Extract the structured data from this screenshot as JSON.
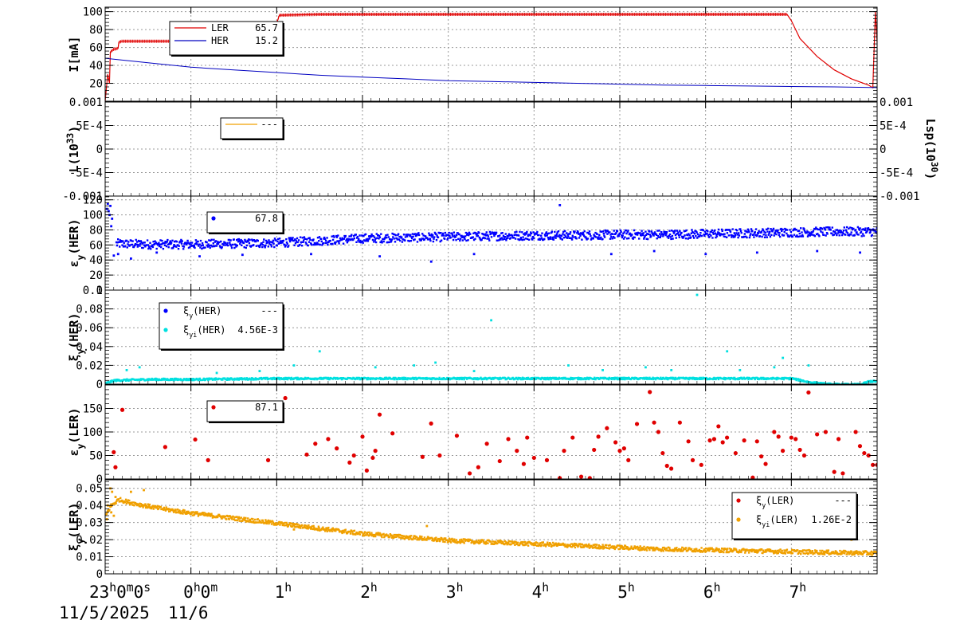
{
  "chart_data": {
    "type": "line",
    "x_axis": {
      "ticks": [
        {
          "t": 0.0,
          "main": "23",
          "sup": "h",
          "rest": "0",
          "sup2": "m",
          "rest2": "0",
          "sup3": "s"
        },
        {
          "t": 1.0,
          "main": "0",
          "sup": "h",
          "rest": "0",
          "sup2": "m"
        },
        {
          "t": 2.0,
          "main": "1",
          "sup": "h"
        },
        {
          "t": 3.0,
          "main": "2",
          "sup": "h"
        },
        {
          "t": 4.0,
          "main": "3",
          "sup": "h"
        },
        {
          "t": 5.0,
          "main": "4",
          "sup": "h"
        },
        {
          "t": 6.0,
          "main": "5",
          "sup": "h"
        },
        {
          "t": 7.0,
          "main": "6",
          "sup": "h"
        },
        {
          "t": 8.0,
          "main": "7",
          "sup": "h"
        }
      ],
      "dates": [
        "11/5/2025",
        "11/6"
      ],
      "range": [
        0.0,
        9.0
      ]
    },
    "panels": [
      {
        "id": "current",
        "ylabel": "I[mA]",
        "ylim": [
          0,
          105
        ],
        "yticks": [
          {
            "v": 20,
            "l": "20"
          },
          {
            "v": 40,
            "l": "40"
          },
          {
            "v": 60,
            "l": "60"
          },
          {
            "v": 80,
            "l": "80"
          },
          {
            "v": 100,
            "l": "100"
          }
        ],
        "legend": [
          {
            "name": "LER",
            "value": "65.7",
            "color": "#e00000",
            "marker": "line"
          },
          {
            "name": "HER",
            "value": "15.2",
            "color": "#0000c0",
            "marker": "line"
          }
        ],
        "series": [
          {
            "name": "LER",
            "color": "#e00000",
            "style": "line",
            "x": [
              0.0,
              0.03,
              0.05,
              0.06,
              0.1,
              0.15,
              0.16,
              0.2,
              0.3,
              0.5,
              0.8,
              1.0,
              1.03,
              1.2,
              1.4,
              1.45,
              1.5,
              1.6,
              1.9,
              2.0,
              2.03,
              2.5,
              3.0,
              4.0,
              5.0,
              6.0,
              7.0,
              7.5,
              7.95,
              8.0,
              8.1,
              8.3,
              8.5,
              8.7,
              8.9,
              8.95,
              8.98,
              9.0
            ],
            "y": [
              0,
              30,
              20,
              55,
              58,
              59,
              66,
              67,
              67,
              67,
              67,
              67,
              76,
              77,
              77,
              86,
              87,
              87,
              87,
              87,
              96,
              97,
              97,
              97,
              97,
              97,
              97,
              97,
              97,
              90,
              70,
              50,
              35,
              25,
              18,
              15,
              100,
              65
            ]
          },
          {
            "name": "HER",
            "color": "#0000c0",
            "style": "line",
            "x": [
              0.0,
              0.5,
              1.0,
              1.5,
              2.0,
              2.5,
              3.0,
              3.5,
              4.0,
              4.5,
              5.0,
              5.5,
              6.0,
              6.5,
              7.0,
              7.5,
              8.0,
              8.5,
              9.0
            ],
            "y": [
              48,
              43,
              38,
              35,
              32,
              29,
              27,
              25,
              23,
              22,
              21,
              20,
              19,
              18,
              17.5,
              17,
              16.5,
              16,
              15.2
            ]
          }
        ]
      },
      {
        "id": "lumi",
        "ylabel": "L(10^33)",
        "ylabel_main": "L(10",
        "ylabel_sup": "33",
        "ylabel_end": ")",
        "ylabel_right_main": "Lsp(10",
        "ylabel_right_sup": "30",
        "ylabel_right_end": ")",
        "ylim": [
          -0.001,
          0.001
        ],
        "yticks": [
          {
            "v": -0.001,
            "l": "-0.001"
          },
          {
            "v": -0.0005,
            "l": "-5E-4"
          },
          {
            "v": 0,
            "l": "0"
          },
          {
            "v": 0.0005,
            "l": "5E-4"
          },
          {
            "v": 0.001,
            "l": "0.001"
          }
        ],
        "yticks_right": [
          {
            "v": -0.001,
            "l": "-0.001"
          },
          {
            "v": -0.0005,
            "l": "-5E-4"
          },
          {
            "v": 0,
            "l": "0"
          },
          {
            "v": 0.0005,
            "l": "5E-4"
          },
          {
            "v": 0.001,
            "l": "0.001"
          }
        ],
        "legend": [
          {
            "name": "",
            "value": "---",
            "color": "#f0a000",
            "marker": "line"
          }
        ],
        "series": []
      },
      {
        "id": "eps_her",
        "ylabel": "εy(HER)",
        "ylabel_main": "ε",
        "ylabel_sub": "y",
        "ylabel_end": "(HER)",
        "ylim": [
          0,
          125
        ],
        "yticks": [
          {
            "v": 0,
            "l": "0"
          },
          {
            "v": 20,
            "l": "20"
          },
          {
            "v": 40,
            "l": "40"
          },
          {
            "v": 60,
            "l": "60"
          },
          {
            "v": 80,
            "l": "80"
          },
          {
            "v": 100,
            "l": "100"
          },
          {
            "v": 120,
            "l": "120"
          }
        ],
        "legend": [
          {
            "name": "",
            "value": "67.8",
            "color": "#0000ff",
            "marker": "dot"
          }
        ],
        "series": [
          {
            "name": "",
            "color": "#0000ff",
            "style": "band",
            "x": [
              0.12,
              0.5,
              1.0,
              1.5,
              2.0,
              2.5,
              3.0,
              3.5,
              4.0,
              4.5,
              5.0,
              5.5,
              6.0,
              6.5,
              7.0,
              7.5,
              8.0,
              8.5,
              9.0
            ],
            "y": [
              63,
              62,
              62,
              63,
              64,
              67,
              70,
              71,
              72,
              73,
              74,
              74,
              75,
              75,
              76,
              77,
              78,
              79,
              79
            ],
            "spread": 6,
            "extra_x": [
              0.02,
              0.03,
              0.05,
              0.06,
              0.08,
              0.04,
              0.07,
              0.1,
              0.15,
              0.3,
              0.6,
              1.1,
              1.6,
              2.4,
              3.2,
              3.8,
              4.3,
              5.3,
              5.9,
              6.4,
              7.0,
              7.6,
              8.3,
              8.8
            ],
            "extra_y": [
              108,
              115,
              100,
              112,
              95,
              105,
              85,
              46,
              48,
              42,
              50,
              45,
              47,
              48,
              45,
              38,
              48,
              113,
              48,
              52,
              48,
              50,
              52,
              50
            ]
          }
        ]
      },
      {
        "id": "xi_her",
        "ylabel": "ξy(HER)",
        "ylabel_main": "ξ",
        "ylabel_sub": "y",
        "ylabel_end": "(HER)",
        "ylim": [
          0,
          0.1
        ],
        "yticks": [
          {
            "v": 0,
            "l": "0"
          },
          {
            "v": 0.02,
            "l": "0.02"
          },
          {
            "v": 0.04,
            "l": "0.04"
          },
          {
            "v": 0.06,
            "l": "0.06"
          },
          {
            "v": 0.08,
            "l": "0.08"
          },
          {
            "v": 0.1,
            "l": "0.1"
          }
        ],
        "legend": [
          {
            "name_main": "ξ",
            "name_sub": "y",
            "name_end": "(HER)",
            "value": "---",
            "color": "#0000ff",
            "marker": "dot"
          },
          {
            "name_main": "ξ",
            "name_sub": "yi",
            "name_end": "(HER)",
            "value": "4.56E-3",
            "color": "#00e0e0",
            "marker": "dot"
          }
        ],
        "series": [
          {
            "name": "ξyi(HER)",
            "color": "#00e0e0",
            "style": "band",
            "x": [
              0.0,
              0.1,
              0.5,
              1.0,
              2.0,
              3.0,
              4.0,
              5.0,
              6.0,
              7.0,
              7.6,
              8.0,
              8.2,
              8.4,
              8.6,
              8.8,
              8.9,
              9.0
            ],
            "y": [
              0.002,
              0.005,
              0.006,
              0.006,
              0.007,
              0.007,
              0.007,
              0.007,
              0.007,
              0.007,
              0.007,
              0.007,
              0.003,
              0.001,
              0.0005,
              0.0005,
              0.004,
              0.004
            ],
            "spread": 0.001,
            "extra_x": [
              0.25,
              0.4,
              1.3,
              1.8,
              2.2,
              2.5,
              3.15,
              3.6,
              3.85,
              4.3,
              4.5,
              5.4,
              5.8,
              6.3,
              6.6,
              6.9,
              7.25,
              7.4,
              7.8,
              7.9,
              8.2
            ],
            "extra_y": [
              0.015,
              0.018,
              0.012,
              0.014,
              0.02,
              0.035,
              0.018,
              0.02,
              0.023,
              0.014,
              0.068,
              0.02,
              0.015,
              0.018,
              0.015,
              0.095,
              0.035,
              0.015,
              0.018,
              0.028,
              0.02
            ]
          }
        ]
      },
      {
        "id": "eps_ler",
        "ylabel": "εy(LER)",
        "ylabel_main": "ε",
        "ylabel_sub": "y",
        "ylabel_end": "(LER)",
        "ylim": [
          0,
          200
        ],
        "yticks": [
          {
            "v": 0,
            "l": "0"
          },
          {
            "v": 50,
            "l": "50"
          },
          {
            "v": 100,
            "l": "100"
          },
          {
            "v": 150,
            "l": "150"
          }
        ],
        "legend": [
          {
            "name": "",
            "value": "87.1",
            "color": "#e00000",
            "marker": "dot"
          }
        ],
        "series": [
          {
            "name": "",
            "color": "#e00000",
            "style": "scatter",
            "x": [
              0.1,
              0.12,
              0.2,
              0.7,
              1.05,
              1.2,
              1.9,
              2.1,
              2.35,
              2.45,
              2.6,
              2.7,
              2.85,
              2.9,
              3.0,
              3.05,
              3.12,
              3.15,
              3.2,
              3.35,
              3.7,
              3.8,
              3.9,
              4.1,
              4.25,
              4.35,
              4.45,
              4.6,
              4.7,
              4.8,
              4.92,
              5.0,
              5.15,
              5.3,
              5.35,
              5.45,
              5.55,
              5.65,
              5.7,
              5.85,
              5.95,
              6.0,
              6.1,
              6.2,
              6.35,
              6.4,
              6.5,
              6.55,
              6.6,
              6.7,
              6.8,
              6.85,
              6.95,
              7.05,
              7.1,
              7.15,
              7.2,
              7.25,
              7.35,
              7.45,
              7.55,
              7.6,
              7.65,
              7.7,
              7.8,
              7.85,
              7.9,
              8.0,
              8.05,
              8.1,
              8.15,
              8.2,
              8.3,
              8.4,
              8.5,
              8.55,
              8.6,
              8.75,
              8.8,
              8.85,
              8.9,
              8.95,
              9.0,
              6.05,
              6.45,
              5.75,
              4.88
            ],
            "y": [
              57,
              25,
              147,
              68,
              84,
              40,
              40,
              172,
              52,
              75,
              85,
              65,
              35,
              50,
              90,
              18,
              45,
              60,
              137,
              97,
              47,
              118,
              50,
              92,
              12,
              25,
              75,
              38,
              85,
              60,
              88,
              45,
              40,
              2,
              60,
              88,
              5,
              2,
              62,
              108,
              78,
              60,
              40,
              117,
              185,
              120,
              55,
              28,
              22,
              120,
              80,
              40,
              30,
              82,
              85,
              112,
              78,
              88,
              55,
              82,
              3,
              80,
              48,
              32,
              100,
              90,
              60,
              88,
              85,
              62,
              50,
              184,
              95,
              100,
              15,
              85,
              12,
              100,
              70,
              55,
              50,
              30,
              30,
              65,
              100,
              90,
              32
            ]
          }
        ]
      },
      {
        "id": "xi_ler",
        "ylabel": "ξy(LER)",
        "ylabel_main": "ξ",
        "ylabel_sub": "y",
        "ylabel_end": "(LER)",
        "ylim": [
          0,
          0.055
        ],
        "yticks": [
          {
            "v": 0,
            "l": "0"
          },
          {
            "v": 0.01,
            "l": "0.01"
          },
          {
            "v": 0.02,
            "l": "0.02"
          },
          {
            "v": 0.03,
            "l": "0.03"
          },
          {
            "v": 0.04,
            "l": "0.04"
          },
          {
            "v": 0.05,
            "l": "0.05"
          }
        ],
        "legend": [
          {
            "name_main": "ξ",
            "name_sub": "y",
            "name_end": "(LER)",
            "value": "---",
            "color": "#e00000",
            "marker": "dot"
          },
          {
            "name_main": "ξ",
            "name_sub": "yi",
            "name_end": "(LER)",
            "value": "1.26E-2",
            "color": "#f0a000",
            "marker": "dot"
          }
        ],
        "series": [
          {
            "name": "ξyi(LER)",
            "color": "#f0a000",
            "style": "band",
            "x": [
              0.0,
              0.05,
              0.15,
              0.3,
              0.6,
              1.0,
              1.5,
              2.0,
              2.5,
              3.0,
              3.5,
              4.0,
              4.5,
              5.0,
              5.5,
              6.0,
              6.5,
              7.0,
              7.5,
              8.0,
              8.5,
              9.0
            ],
            "y": [
              0.035,
              0.04,
              0.044,
              0.042,
              0.039,
              0.036,
              0.033,
              0.03,
              0.027,
              0.024,
              0.022,
              0.02,
              0.019,
              0.018,
              0.017,
              0.016,
              0.015,
              0.0145,
              0.014,
              0.0135,
              0.013,
              0.0126
            ],
            "spread": 0.0012,
            "extra_x": [
              0.02,
              0.04,
              0.06,
              0.08,
              0.1,
              0.12,
              0.03,
              0.07,
              0.3,
              0.45,
              2.2,
              3.75,
              8.7
            ],
            "extra_y": [
              0.032,
              0.037,
              0.05,
              0.048,
              0.034,
              0.045,
              0.04,
              0.036,
              0.048,
              0.049,
              0.026,
              0.028,
              0.02
            ]
          }
        ]
      }
    ]
  }
}
